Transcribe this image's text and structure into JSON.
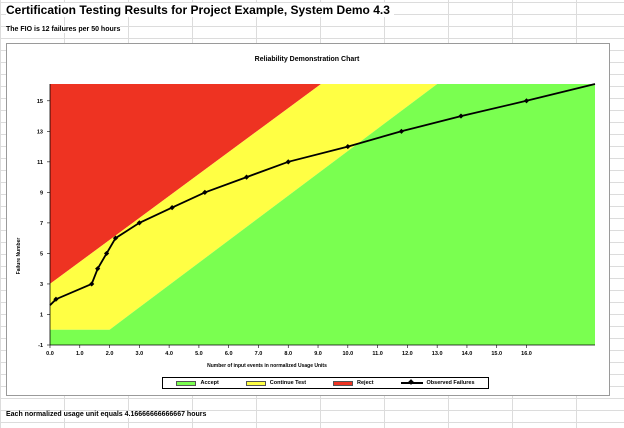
{
  "sheet": {
    "title": "Certification Testing Results for Project Example, System Demo 4.3",
    "subtitle": "The FIO is 12 failures per 50 hours",
    "footer": "Each normalized usage unit equals 4.16666666666667 hours"
  },
  "colors": {
    "accept": "#7aff50",
    "continue": "#ffff44",
    "reject": "#ee3322",
    "observed": "#000000"
  },
  "chart_data": {
    "type": "line",
    "title": "Reliability Demonstration Chart",
    "xlabel": "Number of input events in normalized Usage Units",
    "ylabel": "Failure Number",
    "xlim": [
      0,
      18.3
    ],
    "ylim": [
      -1,
      16.1
    ],
    "x_ticks": [
      "0.0",
      "1.0",
      "2.0",
      "3.0",
      "4.0",
      "5.0",
      "6.0",
      "7.0",
      "8.0",
      "9.0",
      "10.0",
      "11.0",
      "12.0",
      "13.0",
      "14.0",
      "15.0",
      "16.0"
    ],
    "y_ticks": [
      "-1",
      "1",
      "3",
      "5",
      "7",
      "9",
      "11",
      "13",
      "15"
    ],
    "grid": false,
    "regions": [
      {
        "name": "Reject",
        "polygon": [
          [
            0,
            3
          ],
          [
            0,
            16.1
          ],
          [
            9.1,
            16.1
          ]
        ]
      },
      {
        "name": "Continue Test",
        "polygon": [
          [
            0,
            0
          ],
          [
            2.0,
            0
          ],
          [
            13.0,
            16.1
          ],
          [
            9.1,
            16.1
          ],
          [
            0,
            3
          ]
        ]
      },
      {
        "name": "Accept",
        "polygon": [
          [
            0,
            -1
          ],
          [
            18.3,
            -1
          ],
          [
            18.3,
            16.1
          ],
          [
            13.0,
            16.1
          ],
          [
            2.0,
            0
          ],
          [
            0,
            0
          ]
        ]
      }
    ],
    "series": [
      {
        "name": "Observed Failures",
        "x": [
          0,
          0.2,
          1.4,
          1.6,
          1.9,
          2.2,
          3.0,
          4.1,
          5.2,
          6.6,
          8.0,
          10.0,
          11.8,
          13.8,
          16.0,
          18.3
        ],
        "y": [
          1.6,
          2,
          3,
          4,
          5,
          6,
          7,
          8,
          9,
          10,
          11,
          12,
          13,
          14,
          15,
          16.1
        ],
        "markers": [
          false,
          true,
          true,
          true,
          true,
          true,
          true,
          true,
          true,
          true,
          true,
          true,
          true,
          true,
          true,
          false
        ]
      }
    ],
    "legend": [
      "Accept",
      "Continue Test",
      "Reject",
      "Observed Failures"
    ],
    "legend_position": "bottom"
  }
}
